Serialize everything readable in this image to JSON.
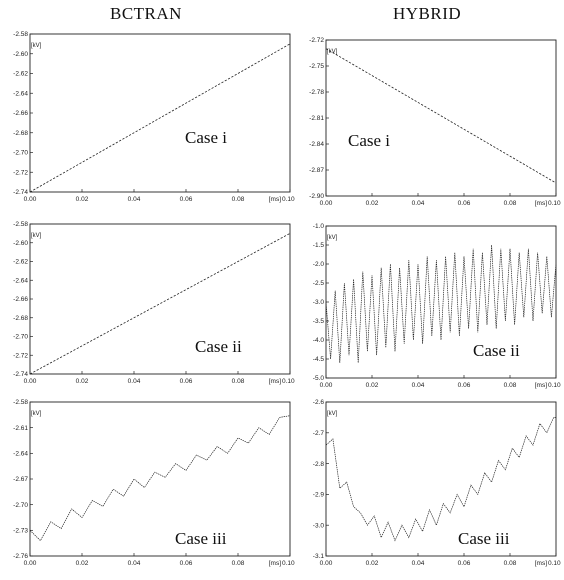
{
  "columns": [
    "BCTRAN",
    "HYBRID"
  ],
  "chart_data": [
    {
      "id": "bctran-case-i",
      "type": "line",
      "title": "",
      "annotation": "Case i",
      "ylabel": "[kV]",
      "xlabel": "[ms]",
      "xlim": [
        0,
        0.1
      ],
      "ylim": [
        -2.74,
        -2.58
      ],
      "xticks": [
        "0.00",
        "0.02",
        "0.04",
        "0.06",
        "0.08",
        "0.10"
      ],
      "yticks": [
        "-2.58",
        "-2.60",
        "-2.62",
        "-2.64",
        "-2.66",
        "-2.68",
        "-2.70",
        "-2.72",
        "-2.74"
      ],
      "x": [
        0.0,
        0.1
      ],
      "y": [
        -2.74,
        -2.59
      ]
    },
    {
      "id": "hybrid-case-i",
      "type": "line",
      "title": "",
      "annotation": "Case i",
      "ylabel": "[kV]",
      "xlabel": "[ms]",
      "xlim": [
        0,
        0.1
      ],
      "ylim": [
        -2.9,
        -2.72
      ],
      "xticks": [
        "0.00",
        "0.02",
        "0.04",
        "0.06",
        "0.08",
        "0.10"
      ],
      "yticks": [
        "-2.72",
        "-2.75",
        "-2.78",
        "-2.81",
        "-2.84",
        "-2.87",
        "-2.90"
      ],
      "x": [
        0.0,
        0.1
      ],
      "y": [
        -2.73,
        -2.885
      ]
    },
    {
      "id": "bctran-case-ii",
      "type": "line",
      "title": "",
      "annotation": "Case ii",
      "ylabel": "[kV]",
      "xlabel": "[ms]",
      "xlim": [
        0,
        0.1
      ],
      "ylim": [
        -2.74,
        -2.58
      ],
      "xticks": [
        "0.00",
        "0.02",
        "0.04",
        "0.06",
        "0.08",
        "0.10"
      ],
      "yticks": [
        "-2.58",
        "-2.60",
        "-2.62",
        "-2.64",
        "-2.66",
        "-2.68",
        "-2.70",
        "-2.72",
        "-2.74"
      ],
      "x": [
        0.0,
        0.1
      ],
      "y": [
        -2.74,
        -2.59
      ]
    },
    {
      "id": "hybrid-case-ii",
      "type": "line",
      "title": "",
      "annotation": "Case ii",
      "ylabel": "[kV]",
      "xlabel": "[ms]",
      "xlim": [
        0,
        0.1
      ],
      "ylim": [
        -5.0,
        -1.0
      ],
      "xticks": [
        "0.00",
        "0.02",
        "0.04",
        "0.06",
        "0.08",
        "0.10"
      ],
      "yticks": [
        "-1.0",
        "-1.5",
        "-2.0",
        "-2.5",
        "-3.0",
        "-3.5",
        "-4.0",
        "-4.5",
        "-5.0"
      ],
      "x": [
        0.0,
        0.002,
        0.004,
        0.006,
        0.008,
        0.01,
        0.012,
        0.014,
        0.016,
        0.018,
        0.02,
        0.022,
        0.024,
        0.026,
        0.028,
        0.03,
        0.032,
        0.034,
        0.036,
        0.038,
        0.04,
        0.042,
        0.044,
        0.046,
        0.048,
        0.05,
        0.052,
        0.054,
        0.056,
        0.058,
        0.06,
        0.062,
        0.064,
        0.066,
        0.068,
        0.07,
        0.072,
        0.074,
        0.076,
        0.078,
        0.08,
        0.082,
        0.084,
        0.086,
        0.088,
        0.09,
        0.092,
        0.094,
        0.096,
        0.098,
        0.1
      ],
      "y": [
        -3.0,
        -4.5,
        -2.7,
        -4.6,
        -2.5,
        -4.4,
        -2.4,
        -4.6,
        -2.2,
        -4.3,
        -2.3,
        -4.4,
        -2.1,
        -4.2,
        -2.0,
        -4.3,
        -2.1,
        -4.1,
        -1.9,
        -4.0,
        -2.0,
        -4.1,
        -1.8,
        -3.9,
        -1.9,
        -4.0,
        -1.8,
        -3.8,
        -1.7,
        -3.9,
        -1.8,
        -3.7,
        -1.6,
        -3.8,
        -1.7,
        -3.6,
        -1.5,
        -3.7,
        -1.6,
        -3.5,
        -1.6,
        -3.6,
        -1.7,
        -3.4,
        -1.6,
        -3.5,
        -1.7,
        -3.3,
        -1.8,
        -3.4,
        -2.0
      ]
    },
    {
      "id": "bctran-case-iii",
      "type": "line",
      "title": "",
      "annotation": "Case iii",
      "ylabel": "[kV]",
      "xlabel": "[ms]",
      "xlim": [
        0,
        0.1
      ],
      "ylim": [
        -2.76,
        -2.58
      ],
      "xticks": [
        "0.00",
        "0.02",
        "0.04",
        "0.06",
        "0.08",
        "0.10"
      ],
      "yticks": [
        "-2.58",
        "-2.61",
        "-2.64",
        "-2.67",
        "-2.70",
        "-2.73",
        "-2.76"
      ],
      "x": [
        0.0,
        0.004,
        0.008,
        0.012,
        0.016,
        0.02,
        0.024,
        0.028,
        0.032,
        0.036,
        0.04,
        0.044,
        0.048,
        0.052,
        0.056,
        0.06,
        0.064,
        0.068,
        0.072,
        0.076,
        0.08,
        0.084,
        0.088,
        0.092,
        0.096,
        0.1
      ],
      "y": [
        -2.73,
        -2.742,
        -2.72,
        -2.728,
        -2.705,
        -2.715,
        -2.695,
        -2.702,
        -2.682,
        -2.69,
        -2.67,
        -2.68,
        -2.662,
        -2.668,
        -2.652,
        -2.66,
        -2.642,
        -2.648,
        -2.632,
        -2.64,
        -2.622,
        -2.628,
        -2.61,
        -2.618,
        -2.598,
        -2.596
      ]
    },
    {
      "id": "hybrid-case-iii",
      "type": "line",
      "title": "",
      "annotation": "Case iii",
      "ylabel": "[kV]",
      "xlabel": "[ms]",
      "xlim": [
        0,
        0.1
      ],
      "ylim": [
        -3.1,
        -2.6
      ],
      "xticks": [
        "0.00",
        "0.02",
        "0.04",
        "0.06",
        "0.08",
        "0.10"
      ],
      "yticks": [
        "-2.6",
        "-2.7",
        "-2.8",
        "-2.9",
        "-3.0",
        "-3.1"
      ],
      "x": [
        0.0,
        0.003,
        0.006,
        0.009,
        0.012,
        0.015,
        0.018,
        0.021,
        0.024,
        0.027,
        0.03,
        0.033,
        0.036,
        0.039,
        0.042,
        0.045,
        0.048,
        0.051,
        0.054,
        0.057,
        0.06,
        0.063,
        0.066,
        0.069,
        0.072,
        0.075,
        0.078,
        0.081,
        0.084,
        0.087,
        0.09,
        0.093,
        0.096,
        0.099,
        0.1
      ],
      "y": [
        -2.74,
        -2.72,
        -2.88,
        -2.86,
        -2.94,
        -2.96,
        -3.0,
        -2.97,
        -3.04,
        -2.99,
        -3.05,
        -3.0,
        -3.04,
        -2.98,
        -3.02,
        -2.95,
        -3.0,
        -2.93,
        -2.96,
        -2.9,
        -2.94,
        -2.87,
        -2.9,
        -2.83,
        -2.86,
        -2.79,
        -2.82,
        -2.75,
        -2.78,
        -2.71,
        -2.74,
        -2.67,
        -2.7,
        -2.65,
        -2.65
      ]
    }
  ]
}
